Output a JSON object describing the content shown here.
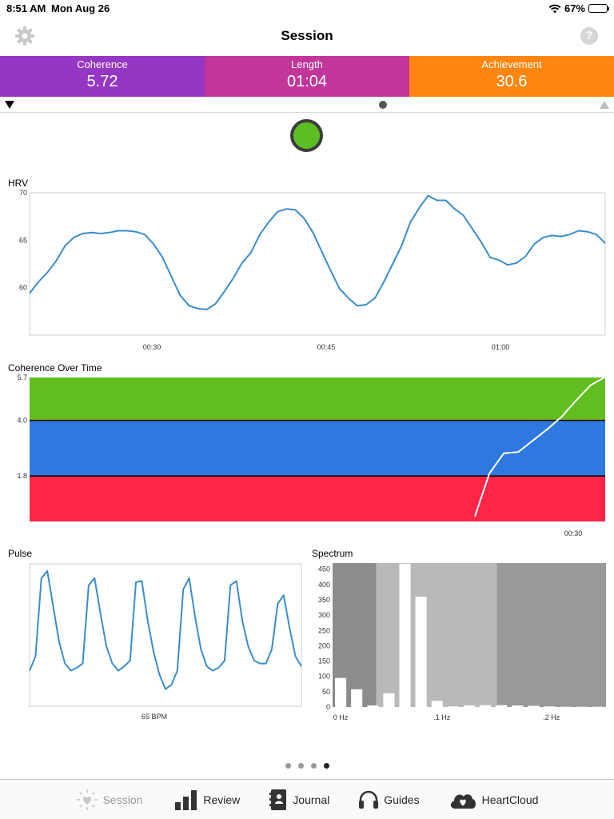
{
  "status_bar": {
    "time": "8:51 AM",
    "date": "Mon Aug 26",
    "battery": "67%",
    "battery_level": 0.67
  },
  "nav": {
    "title": "Session",
    "settings_icon": "gear-icon",
    "help_icon": "question-circle-icon",
    "help_glyph": "?"
  },
  "stats": [
    {
      "label": "Coherence",
      "value": "5.72",
      "color": "#9537c4"
    },
    {
      "label": "Length",
      "value": "01:04",
      "color": "#c2369a"
    },
    {
      "label": "Achievement",
      "value": "30.6",
      "color": "#fe8610"
    }
  ],
  "coherence_indicator": {
    "color": "#5dbd25"
  },
  "hrv": {
    "title": "HRV",
    "chart_data": {
      "type": "line",
      "title": "HRV",
      "ylim": [
        55,
        70
      ],
      "y_ticks": [
        "70",
        "65",
        "60"
      ],
      "x_ticks": [
        "00:30",
        "00:45",
        "01:00"
      ],
      "color": "#3a8dcb",
      "series": [
        {
          "values": [
            59.4,
            60.6,
            61.6,
            62.8,
            64.4,
            65.3,
            65.7,
            65.8,
            65.7,
            65.8,
            66.0,
            66.0,
            65.9,
            65.6,
            64.6,
            63.2,
            61.2,
            59.2,
            58.1,
            57.8,
            57.7,
            58.3,
            59.6,
            61.0,
            62.6,
            63.7,
            65.6,
            66.9,
            68.0,
            68.3,
            68.2,
            67.3,
            65.8,
            63.8,
            61.8,
            59.9,
            58.9,
            58.1,
            58.2,
            58.9,
            60.6,
            62.5,
            64.4,
            66.9,
            68.4,
            69.7,
            69.2,
            69.2,
            68.3,
            67.6,
            66.2,
            64.8,
            63.2,
            62.9,
            62.4,
            62.6,
            63.3,
            64.6,
            65.3,
            65.5,
            65.4,
            65.6,
            66.0,
            65.9,
            65.6,
            64.7
          ]
        }
      ]
    }
  },
  "coherence_over_time": {
    "title": "Coherence Over Time",
    "chart_data": {
      "type": "line",
      "title": "Coherence Over Time",
      "ylim": [
        0,
        5.7
      ],
      "y_ticks": [
        "5.7",
        "4.0",
        "1.8"
      ],
      "x_ticks": [
        "00:30"
      ],
      "zones": [
        {
          "from": 4.0,
          "to": 5.7,
          "color": "#62bd21"
        },
        {
          "from": 1.8,
          "to": 4.0,
          "color": "#2f78e0"
        },
        {
          "from": 0,
          "to": 1.8,
          "color": "#fe2546"
        }
      ],
      "line_color": "#ffffff",
      "series": [
        {
          "values": [
            0.2,
            1.9,
            2.7,
            2.75,
            3.2,
            3.65,
            4.15,
            4.8,
            5.4,
            5.72
          ]
        }
      ]
    }
  },
  "pulse": {
    "title": "Pulse",
    "bpm_label": "65 BPM",
    "chart_data": {
      "type": "line",
      "title": "Pulse",
      "color": "#3a8dcb",
      "series": [
        {
          "values": [
            0.25,
            0.35,
            0.9,
            0.95,
            0.7,
            0.45,
            0.3,
            0.25,
            0.27,
            0.3,
            0.85,
            0.9,
            0.65,
            0.42,
            0.3,
            0.25,
            0.28,
            0.32,
            0.87,
            0.88,
            0.6,
            0.38,
            0.22,
            0.12,
            0.15,
            0.25,
            0.82,
            0.9,
            0.63,
            0.4,
            0.28,
            0.25,
            0.27,
            0.32,
            0.85,
            0.88,
            0.6,
            0.42,
            0.32,
            0.3,
            0.3,
            0.4,
            0.72,
            0.78,
            0.55,
            0.35,
            0.28
          ]
        }
      ]
    }
  },
  "spectrum": {
    "title": "Spectrum",
    "chart_data": {
      "type": "bar",
      "title": "Spectrum",
      "ylim": [
        0,
        470
      ],
      "y_ticks": [
        "450",
        "400",
        "350",
        "300",
        "250",
        "200",
        "150",
        "100",
        "50",
        "0"
      ],
      "x_ticks": [
        "0 Hz",
        ".1 Hz",
        ".2 Hz"
      ],
      "bands": [
        {
          "from": 0,
          "to": 0.04,
          "color": "#8c8c8c"
        },
        {
          "from": 0.04,
          "to": 0.15,
          "color": "#b9b9b9"
        },
        {
          "from": 0.15,
          "to": 0.25,
          "color": "#999999"
        }
      ],
      "bar_color": "#ffffff",
      "values": [
        95,
        58,
        5,
        45,
        468,
        360,
        20,
        2,
        5,
        6,
        6,
        5,
        4,
        2,
        1,
        1,
        1
      ]
    }
  },
  "page_dots": 4,
  "page_dots_active": 3,
  "tabs": [
    {
      "label": "Session",
      "icon": "heart-sun-icon",
      "active": true
    },
    {
      "label": "Review",
      "icon": "bar-chart-icon",
      "active": false
    },
    {
      "label": "Journal",
      "icon": "journal-icon",
      "active": false
    },
    {
      "label": "Guides",
      "icon": "headphones-icon",
      "active": false
    },
    {
      "label": "HeartCloud",
      "icon": "heart-cloud-icon",
      "active": false
    }
  ]
}
